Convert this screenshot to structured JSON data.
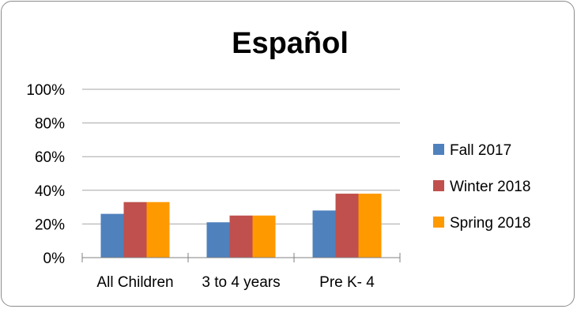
{
  "chart_data": {
    "type": "bar",
    "title": "Español",
    "categories": [
      "All Children",
      "3 to 4 years",
      "Pre K- 4"
    ],
    "series": [
      {
        "name": "Fall 2017",
        "color": "#4f81bd",
        "values": [
          26,
          21,
          28
        ]
      },
      {
        "name": "Winter 2018",
        "color": "#c0504d",
        "values": [
          33,
          25,
          38
        ]
      },
      {
        "name": "Spring 2018",
        "color": "#ff9900",
        "values": [
          33,
          25,
          38
        ]
      }
    ],
    "y_ticks": [
      "0%",
      "20%",
      "40%",
      "60%",
      "80%",
      "100%"
    ],
    "ylim": [
      0,
      100
    ],
    "grid": true,
    "legend_position": "right"
  }
}
